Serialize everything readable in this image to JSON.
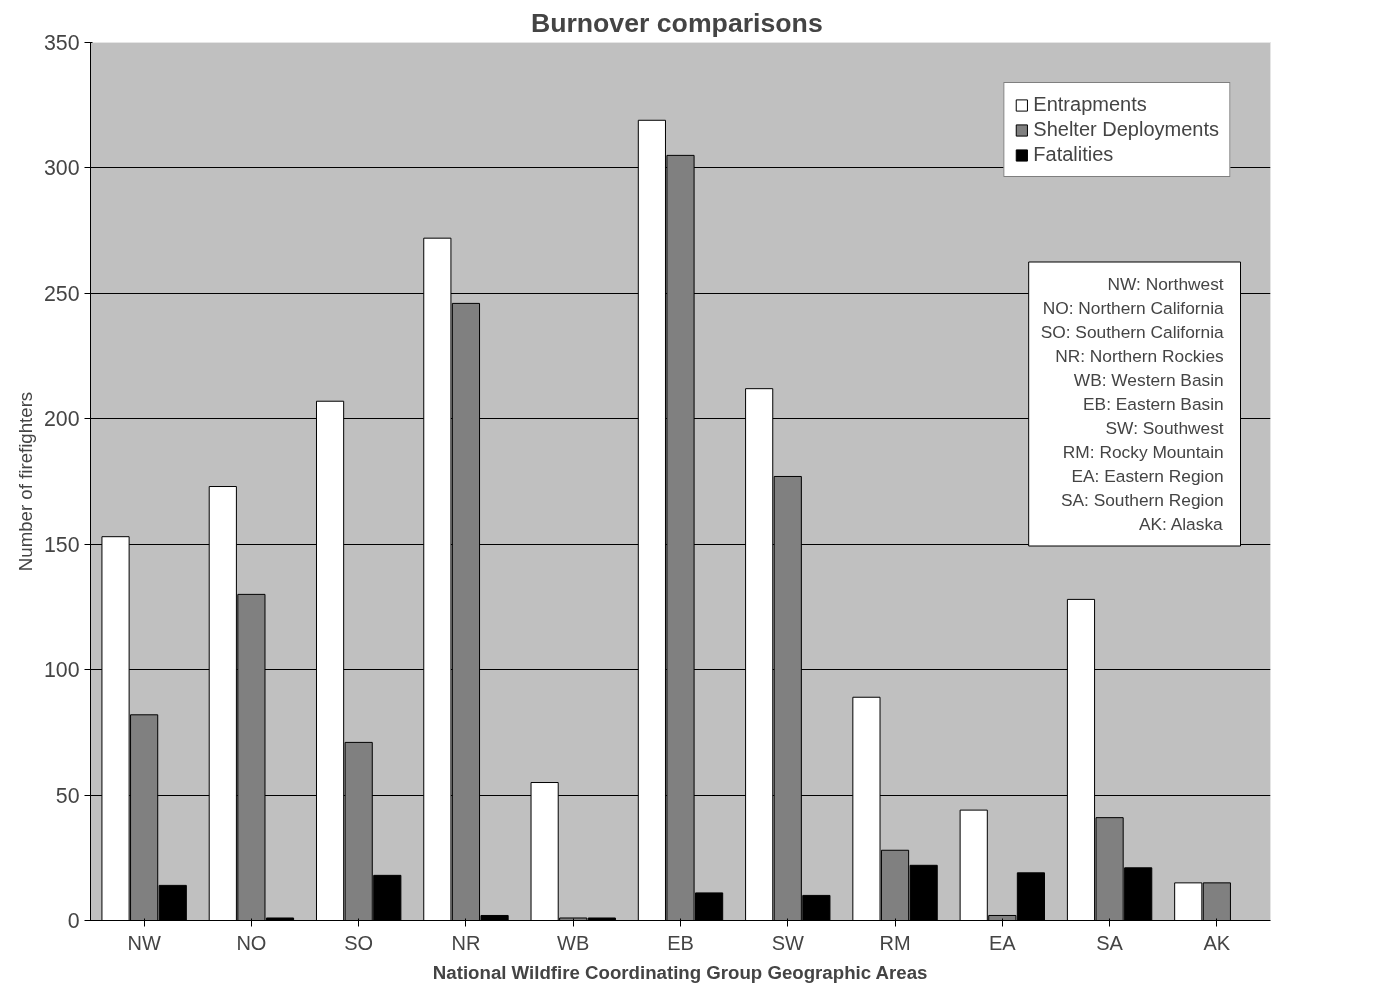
{
  "chart_data": {
    "type": "bar",
    "title": "Burnover  comparisons",
    "xlabel": "National Wildfire Coordinating Group Geographic Areas",
    "ylabel": "Number of firefighters",
    "categories": [
      "NW",
      "NO",
      "SO",
      "NR",
      "WB",
      "EB",
      "SW",
      "RM",
      "EA",
      "SA",
      "AK"
    ],
    "series": [
      {
        "name": "Entrapments",
        "color": "#ffffff",
        "values": [
          153,
          173,
          207,
          272,
          55,
          319,
          212,
          89,
          44,
          128,
          15
        ]
      },
      {
        "name": "Shelter Deployments",
        "color": "#808080",
        "values": [
          82,
          130,
          71,
          246,
          1,
          305,
          177,
          28,
          2,
          41,
          15
        ]
      },
      {
        "name": "Fatalities",
        "color": "#000000",
        "values": [
          14,
          1,
          18,
          2,
          1,
          11,
          10,
          22,
          19,
          21,
          0
        ]
      }
    ],
    "ylim": [
      0,
      350
    ],
    "yticks": [
      0,
      50,
      100,
      150,
      200,
      250,
      300,
      350
    ],
    "grid": "y",
    "legend": "top right",
    "annotations": [
      "NW:  Northwest",
      "NO:  Northern California",
      "SO:  Southern California",
      "NR:  Northern Rockies",
      "WB:  Western Basin",
      "EB:  Eastern Basin",
      "SW:  Southwest",
      "RM:  Rocky Mountain",
      "EA:  Eastern Region",
      "SA:  Southern Region",
      "AK:  Alaska"
    ]
  }
}
